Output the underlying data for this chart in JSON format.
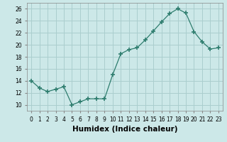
{
  "x": [
    0,
    1,
    2,
    3,
    4,
    5,
    6,
    7,
    8,
    9,
    10,
    11,
    12,
    13,
    14,
    15,
    16,
    17,
    18,
    19,
    20,
    21,
    22,
    23
  ],
  "y": [
    14,
    12.8,
    12.2,
    12.6,
    13,
    10,
    10.5,
    11,
    11,
    11,
    15,
    18.5,
    19.2,
    19.5,
    20.8,
    22.3,
    23.8,
    25.2,
    26,
    25.3,
    22.2,
    20.5,
    19.3,
    19.5
  ],
  "line_color": "#2e7d6e",
  "marker": "+",
  "marker_size": 4,
  "bg_color": "#cce8e8",
  "grid_color": "#aacece",
  "xlabel": "Humidex (Indice chaleur)",
  "ylim": [
    9,
    27
  ],
  "xlim": [
    -0.5,
    23.5
  ],
  "yticks": [
    10,
    12,
    14,
    16,
    18,
    20,
    22,
    24,
    26
  ],
  "xticks": [
    0,
    1,
    2,
    3,
    4,
    5,
    6,
    7,
    8,
    9,
    10,
    11,
    12,
    13,
    14,
    15,
    16,
    17,
    18,
    19,
    20,
    21,
    22,
    23
  ],
  "tick_labelsize": 5.5,
  "xlabel_fontsize": 7.5
}
